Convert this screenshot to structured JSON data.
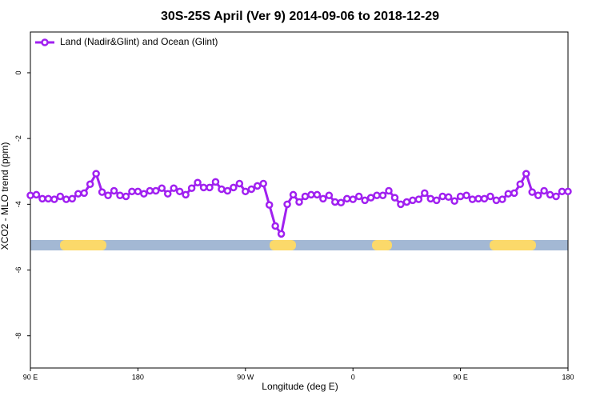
{
  "chart_data": {
    "type": "line",
    "title": "30S-25S April (Ver 9)   2014-09-06 to 2018-12-29",
    "xlabel": "Longitude (deg E)",
    "ylabel": "XCO2 - MLO trend (ppm)",
    "xlim": [
      90,
      540
    ],
    "xticks": [
      {
        "value": 90,
        "label": "90 E"
      },
      {
        "value": 180,
        "label": "180"
      },
      {
        "value": 270,
        "label": "90 W"
      },
      {
        "value": 360,
        "label": "0"
      },
      {
        "value": 450,
        "label": "90 E"
      },
      {
        "value": 540,
        "label": "180"
      }
    ],
    "ylim": [
      -8.98,
      1.24
    ],
    "yticks": [
      0,
      -2,
      -4,
      -6,
      -8
    ],
    "legend": "top-left",
    "x": [
      90,
      95,
      100,
      105,
      110,
      115,
      120,
      125,
      130,
      135,
      140,
      145,
      150,
      155,
      160,
      165,
      170,
      175,
      180,
      185,
      190,
      195,
      200,
      205,
      210,
      215,
      220,
      225,
      230,
      235,
      240,
      245,
      250,
      255,
      260,
      265,
      270,
      275,
      280,
      285,
      290,
      295,
      300,
      305,
      310,
      315,
      320,
      325,
      330,
      335,
      340,
      345,
      350,
      355,
      360,
      365,
      370,
      375,
      380,
      385,
      390,
      395,
      400,
      405,
      410,
      415,
      420,
      425,
      430,
      435,
      440,
      445,
      450,
      455,
      460,
      465,
      470,
      475,
      480,
      485,
      490,
      495,
      500,
      505,
      510,
      515,
      520,
      525,
      530,
      535,
      540
    ],
    "series": [
      {
        "name": "Land (Nadir&Glint) and Ocean (Glint)",
        "color": "#a020f0",
        "values": [
          -3.73,
          -3.71,
          -3.83,
          -3.83,
          -3.85,
          -3.76,
          -3.85,
          -3.83,
          -3.68,
          -3.66,
          -3.39,
          -3.07,
          -3.63,
          -3.73,
          -3.59,
          -3.73,
          -3.76,
          -3.61,
          -3.61,
          -3.68,
          -3.59,
          -3.59,
          -3.51,
          -3.68,
          -3.51,
          -3.61,
          -3.71,
          -3.51,
          -3.34,
          -3.49,
          -3.49,
          -3.32,
          -3.54,
          -3.59,
          -3.49,
          -3.37,
          -3.61,
          -3.54,
          -3.44,
          -3.37,
          -4.02,
          -4.66,
          -4.9,
          -4.0,
          -3.71,
          -3.93,
          -3.76,
          -3.71,
          -3.71,
          -3.83,
          -3.73,
          -3.93,
          -3.95,
          -3.83,
          -3.85,
          -3.76,
          -3.88,
          -3.8,
          -3.73,
          -3.73,
          -3.59,
          -3.8,
          -4.0,
          -3.93,
          -3.88,
          -3.85,
          -3.66,
          -3.83,
          -3.88,
          -3.76,
          -3.78,
          -3.9,
          -3.76,
          -3.73,
          -3.85,
          -3.83,
          -3.83,
          -3.76,
          -3.88,
          -3.85,
          -3.68,
          -3.66,
          -3.39,
          -3.07,
          -3.63,
          -3.73,
          -3.59,
          -3.71,
          -3.76,
          -3.61,
          -3.61
        ]
      }
    ]
  }
}
